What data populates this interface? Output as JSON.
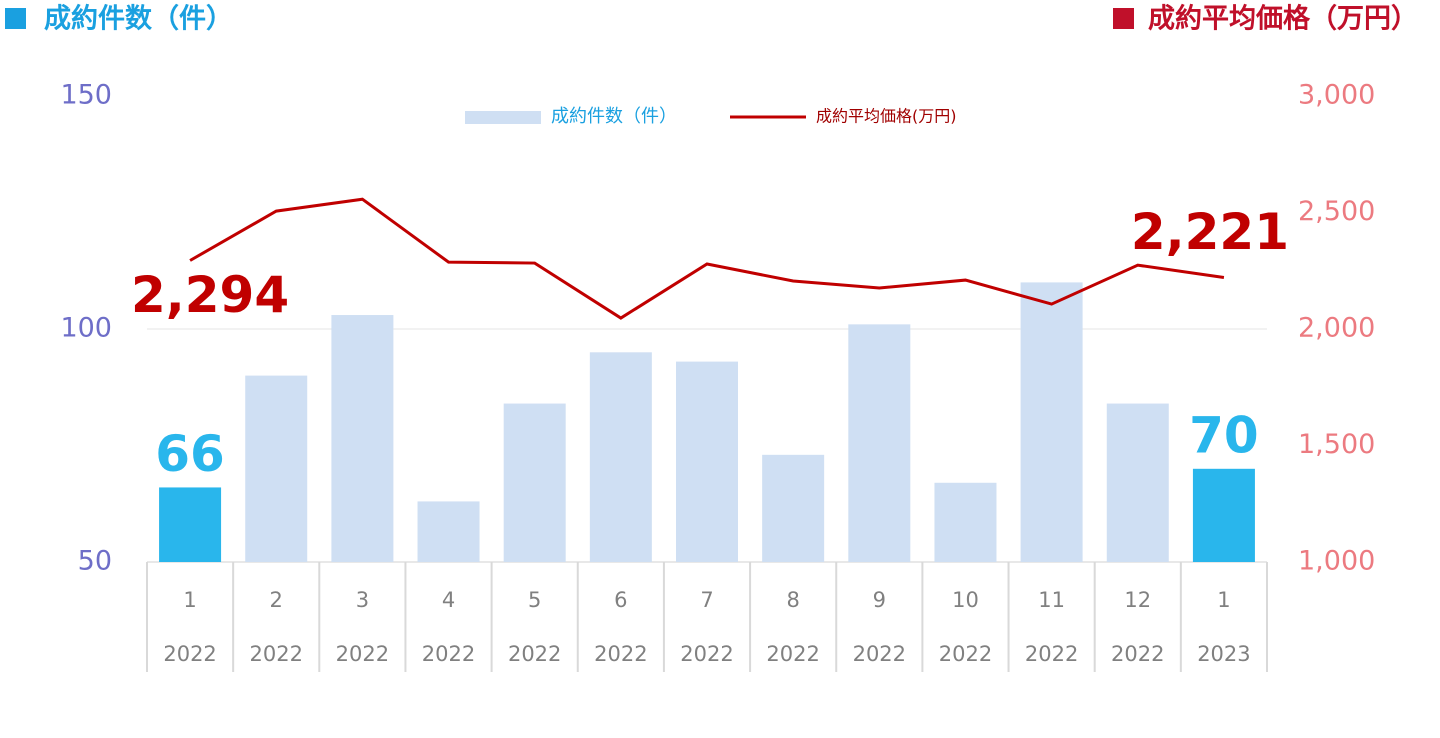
{
  "chart_data": {
    "type": "bar-line",
    "y_label": "成約件数（件）",
    "y2_label": "成約平均価格（万円）",
    "categories": [
      "1",
      "2",
      "3",
      "4",
      "5",
      "6",
      "7",
      "8",
      "9",
      "10",
      "11",
      "12",
      "1"
    ],
    "category_groups": [
      "2022",
      "2022",
      "2022",
      "2022",
      "2022",
      "2022",
      "2022",
      "2022",
      "2022",
      "2022",
      "2022",
      "2022",
      "2023"
    ],
    "series": [
      {
        "name": "成約件数（件）",
        "type": "bar",
        "color": "#cfdff3",
        "colors": [
          "#29b6ec",
          "#cfdff3",
          "#cfdff3",
          "#cfdff3",
          "#cfdff3",
          "#cfdff3",
          "#cfdff3",
          "#cfdff3",
          "#cfdff3",
          "#cfdff3",
          "#cfdff3",
          "#cfdff3",
          "#29b6ec"
        ],
        "values": [
          66,
          90,
          103,
          63,
          84,
          95,
          93,
          73,
          101,
          67,
          110,
          84,
          70
        ],
        "value_labels": [
          "66",
          null,
          null,
          null,
          null,
          null,
          null,
          null,
          null,
          null,
          null,
          null,
          "70"
        ]
      },
      {
        "name": "成約平均価格(万円)",
        "type": "line",
        "axis": "y2",
        "color": "#c00000",
        "values": [
          2294,
          2506,
          2557,
          2287,
          2283,
          2047,
          2279,
          2206,
          2176,
          2210,
          2107,
          2274,
          2221
        ],
        "value_labels": [
          "2,294",
          null,
          null,
          null,
          null,
          null,
          null,
          null,
          null,
          null,
          null,
          null,
          "2,221"
        ]
      }
    ],
    "ylim": [
      50,
      150
    ],
    "yticks": [
      50,
      100,
      150
    ],
    "y2lim": [
      1000,
      3000
    ],
    "y2ticks": [
      {
        "value": 1000,
        "label": "1,000"
      },
      {
        "value": 1500,
        "label": "1,500"
      },
      {
        "value": 2000,
        "label": "2,000"
      },
      {
        "value": 2500,
        "label": "2,500"
      },
      {
        "value": 3000,
        "label": "3,000"
      }
    ],
    "grid": true
  }
}
